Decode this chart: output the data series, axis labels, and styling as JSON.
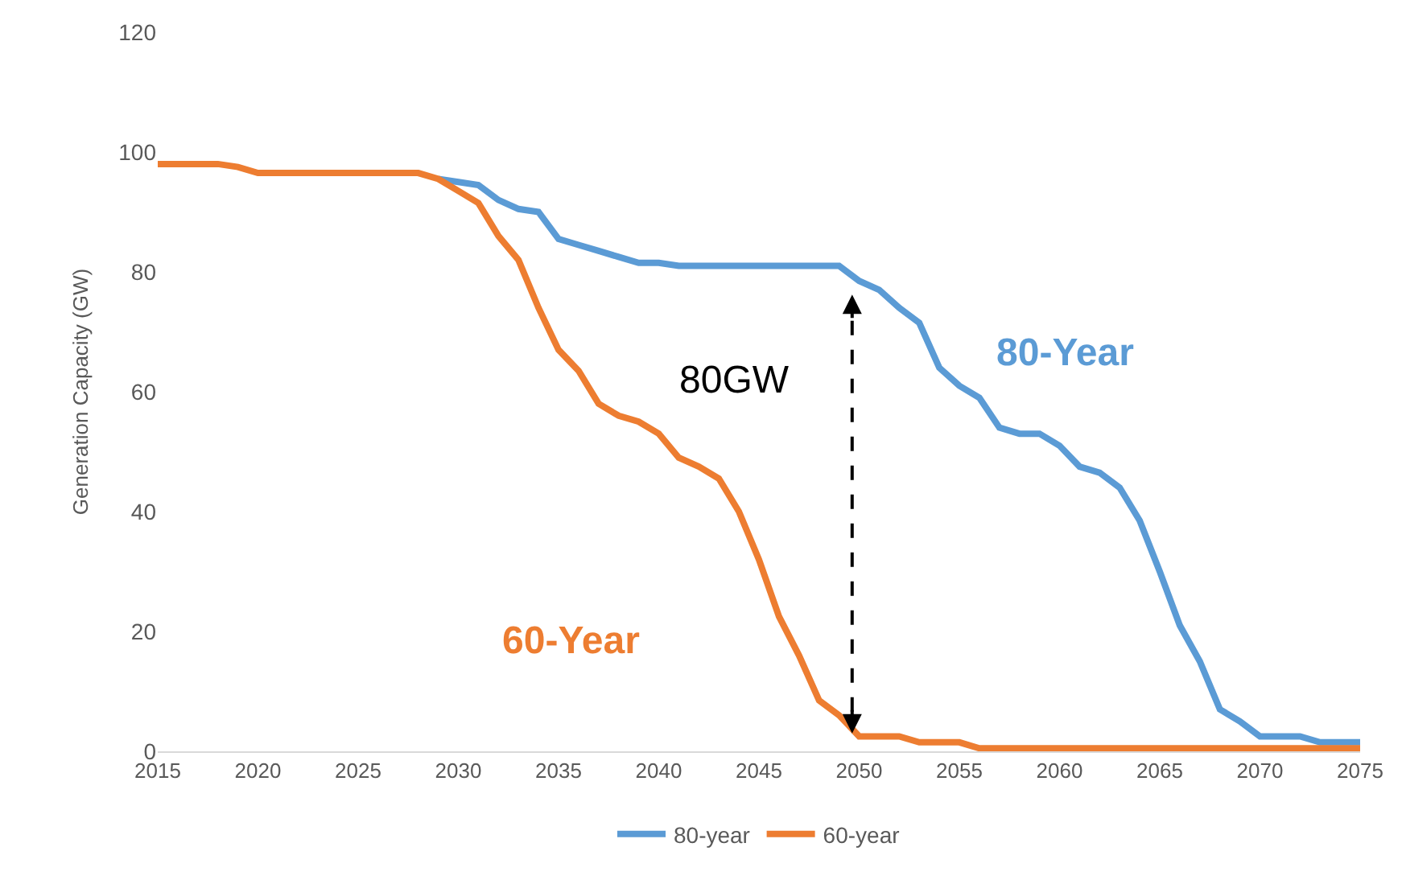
{
  "chart_data": {
    "type": "line",
    "ylabel": "Generation Capacity (GW)",
    "x": [
      2015,
      2016,
      2017,
      2018,
      2019,
      2020,
      2021,
      2022,
      2023,
      2024,
      2025,
      2026,
      2027,
      2028,
      2029,
      2030,
      2031,
      2032,
      2033,
      2034,
      2035,
      2036,
      2037,
      2038,
      2039,
      2040,
      2041,
      2042,
      2043,
      2044,
      2045,
      2046,
      2047,
      2048,
      2049,
      2050,
      2051,
      2052,
      2053,
      2054,
      2055,
      2056,
      2057,
      2058,
      2059,
      2060,
      2061,
      2062,
      2063,
      2064,
      2065,
      2066,
      2067,
      2068,
      2069,
      2070,
      2071,
      2072,
      2073,
      2074,
      2075
    ],
    "series": [
      {
        "name": "80-year",
        "color": "#5b9bd5",
        "values": [
          null,
          null,
          null,
          null,
          null,
          null,
          null,
          null,
          null,
          null,
          null,
          null,
          null,
          null,
          95.5,
          95,
          94.5,
          92,
          90.5,
          90,
          85.5,
          84.5,
          83.5,
          82.5,
          81.5,
          81.5,
          81,
          81,
          81,
          81,
          81,
          81,
          81,
          81,
          81,
          78.5,
          77,
          74,
          71.5,
          64,
          61,
          59,
          54,
          53,
          53,
          51,
          47.5,
          46.5,
          44,
          38.5,
          30,
          21,
          15,
          7,
          5,
          2.5,
          2.5,
          2.5,
          1.5,
          1.5,
          1.5
        ]
      },
      {
        "name": "60-year",
        "color": "#ed7d31",
        "values": [
          98,
          98,
          98,
          98,
          97.5,
          96.5,
          96.5,
          96.5,
          96.5,
          96.5,
          96.5,
          96.5,
          96.5,
          96.5,
          95.5,
          93.5,
          91.5,
          86,
          82,
          74,
          67,
          63.5,
          58,
          56,
          55,
          53,
          49,
          47.5,
          45.5,
          40,
          32,
          22.5,
          16,
          8.5,
          6,
          2.5,
          2.5,
          2.5,
          1.5,
          1.5,
          1.5,
          0.5,
          0.5,
          0.5,
          0.5,
          0.5,
          0.5,
          0.5,
          0.5,
          0.5,
          0.5,
          0.5,
          0.5,
          0.5,
          0.5,
          0.5,
          0.5,
          0.5,
          0.5,
          0.5,
          0.5
        ]
      }
    ],
    "annotations": [
      "80GW",
      "80-Year",
      "60-Year"
    ],
    "xlim": [
      2015,
      2075
    ],
    "xticks": [
      2015,
      2020,
      2025,
      2030,
      2035,
      2040,
      2045,
      2050,
      2055,
      2060,
      2065,
      2070,
      2075
    ],
    "ylim": [
      0,
      120
    ],
    "yticks": [
      0,
      20,
      40,
      60,
      80,
      100,
      120
    ],
    "grid": false,
    "legend": "bottom",
    "marker": "none",
    "line_style": "solid"
  }
}
